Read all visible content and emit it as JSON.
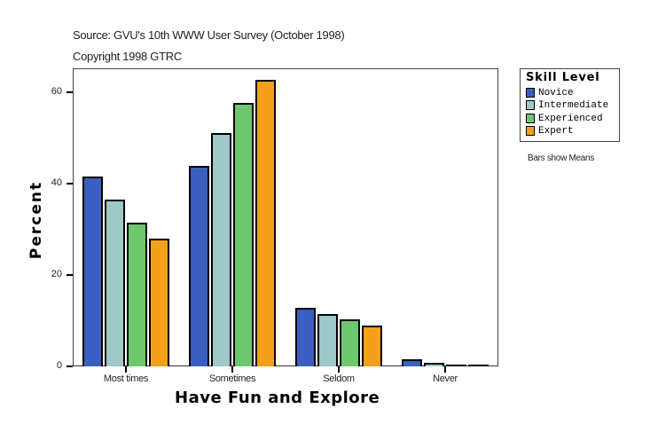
{
  "header": {
    "source": "Source: GVU's 10th WWW User Survey (October 1998)",
    "copyright": "Copyright 1998 GTRC"
  },
  "note": "Bars show Means",
  "colors": {
    "Novice": "#3a5fc0",
    "Intermediate": "#9fc8c8",
    "Experienced": "#6ec76e",
    "Expert": "#f5a01a"
  },
  "chart_data": {
    "type": "bar",
    "title": "",
    "xlabel": "Have Fun and Explore",
    "ylabel": "Percent",
    "ylim": [
      0,
      65
    ],
    "yticks": [
      0,
      20,
      40,
      60
    ],
    "grid": false,
    "legend_position": "right",
    "legend_title": "Skill Level",
    "categories": [
      "Most times",
      "Sometimes",
      "Seldom",
      "Never"
    ],
    "series": [
      {
        "name": "Novice",
        "values": [
          41.6,
          43.9,
          12.8,
          1.5
        ]
      },
      {
        "name": "Intermediate",
        "values": [
          36.5,
          51.0,
          11.4,
          0.7
        ]
      },
      {
        "name": "Experienced",
        "values": [
          31.5,
          57.7,
          10.2,
          0.2
        ]
      },
      {
        "name": "Expert",
        "values": [
          28.0,
          62.7,
          8.9,
          0.2
        ]
      }
    ],
    "annotations": [
      "Bars show Means"
    ]
  }
}
